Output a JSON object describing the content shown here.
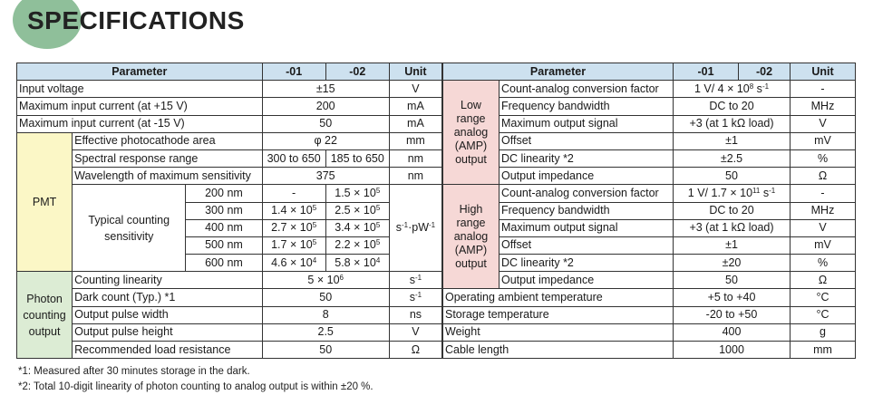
{
  "title": "SPECIFICATIONS",
  "left": {
    "headers": {
      "param": "Parameter",
      "v01": "-01",
      "v02": "-02",
      "unit": "Unit"
    },
    "input_voltage": {
      "param": "Input voltage",
      "value": "±15",
      "unit": "V"
    },
    "max_current_pos": {
      "param": "Maximum input current (at +15 V)",
      "value": "200",
      "unit": "mA"
    },
    "max_current_neg": {
      "param": "Maximum input current (at -15 V)",
      "value": "50",
      "unit": "mA"
    },
    "pmt_group": "PMT",
    "photocathode": {
      "param": "Effective photocathode area",
      "value": "φ 22",
      "unit": "mm"
    },
    "spectral": {
      "param": "Spectral response range",
      "v01": "300 to 650",
      "v02": "185 to 650",
      "unit": "nm"
    },
    "max_sens": {
      "param": "Wavelength of maximum sensitivity",
      "value": "375",
      "unit": "nm"
    },
    "sensitivity": {
      "param": "Typical counting sensitivity",
      "unit_base": "s",
      "unit_exp1": "-1",
      "unit_mid": "·pW",
      "unit_exp2": "-1",
      "rows": [
        {
          "wl": "200 nm",
          "m01": "-",
          "e01": "",
          "m02": "1.5",
          "e02": "5"
        },
        {
          "wl": "300 nm",
          "m01": "1.4",
          "e01": "5",
          "m02": "2.5",
          "e02": "5"
        },
        {
          "wl": "400 nm",
          "m01": "2.7",
          "e01": "5",
          "m02": "3.4",
          "e02": "5"
        },
        {
          "wl": "500 nm",
          "m01": "1.7",
          "e01": "5",
          "m02": "2.2",
          "e02": "5"
        },
        {
          "wl": "600 nm",
          "m01": "4.6",
          "e01": "4",
          "m02": "5.8",
          "e02": "4"
        }
      ],
      "times": "×",
      "ten": "10"
    },
    "pc_group": "Photon counting output",
    "linearity": {
      "param": "Counting linearity",
      "mant": "5 × 10",
      "exp": "6",
      "unit": "s",
      "unit_exp": "-1"
    },
    "dark_count": {
      "param": "Dark count (Typ.) *1",
      "value": "50",
      "unit": "s",
      "unit_exp": "-1"
    },
    "pulse_width": {
      "param": "Output pulse width",
      "value": "8",
      "unit": "ns"
    },
    "pulse_height": {
      "param": "Output pulse height",
      "value": "2.5",
      "unit": "V"
    },
    "load_res": {
      "param": "Recommended load resistance",
      "value": "50",
      "unit": "Ω"
    }
  },
  "right": {
    "headers": {
      "param": "Parameter",
      "v01": "-01",
      "v02": "-02",
      "unit": "Unit"
    },
    "low_group": "Low range analog (AMP) output",
    "high_group": "High range analog (AMP) output",
    "low": [
      {
        "param": "Count-analog conversion factor",
        "value": "1 V/ 4 × 10",
        "exp": "8",
        "tail": " s",
        "tail_exp": "-1",
        "unit": "-"
      },
      {
        "param": "Frequency bandwidth",
        "value": "DC to 20",
        "unit": "MHz"
      },
      {
        "param": "Maximum output signal",
        "value": "+3 (at 1 kΩ load)",
        "unit": "V"
      },
      {
        "param": "Offset",
        "value": "±1",
        "unit": "mV"
      },
      {
        "param": "DC linearity *2",
        "value": "±2.5",
        "unit": "%"
      },
      {
        "param": "Output impedance",
        "value": "50",
        "unit": "Ω"
      }
    ],
    "high": [
      {
        "param": "Count-analog conversion factor",
        "value": "1 V/ 1.7 × 10",
        "exp": "11",
        "tail": " s",
        "tail_exp": "-1",
        "unit": "-"
      },
      {
        "param": "Frequency bandwidth",
        "value": "DC to 20",
        "unit": "MHz"
      },
      {
        "param": "Maximum output signal",
        "value": "+3 (at 1 kΩ load)",
        "unit": "V"
      },
      {
        "param": "Offset",
        "value": "±1",
        "unit": "mV"
      },
      {
        "param": "DC linearity *2",
        "value": "±20",
        "unit": "%"
      },
      {
        "param": "Output impedance",
        "value": "50",
        "unit": "Ω"
      }
    ],
    "op_temp": {
      "param": "Operating ambient temperature",
      "value": "+5 to +40",
      "unit": "°C"
    },
    "storage_temp": {
      "param": "Storage temperature",
      "value": "-20 to +50",
      "unit": "°C"
    },
    "weight": {
      "param": "Weight",
      "value": "400",
      "unit": "g"
    },
    "cable": {
      "param": "Cable length",
      "value": "1000",
      "unit": "mm"
    }
  },
  "notes": [
    "*1: Measured after 30 minutes storage in the dark.",
    "*2: Total 10-digit linearity of photon counting to analog output is within ±20 %."
  ]
}
